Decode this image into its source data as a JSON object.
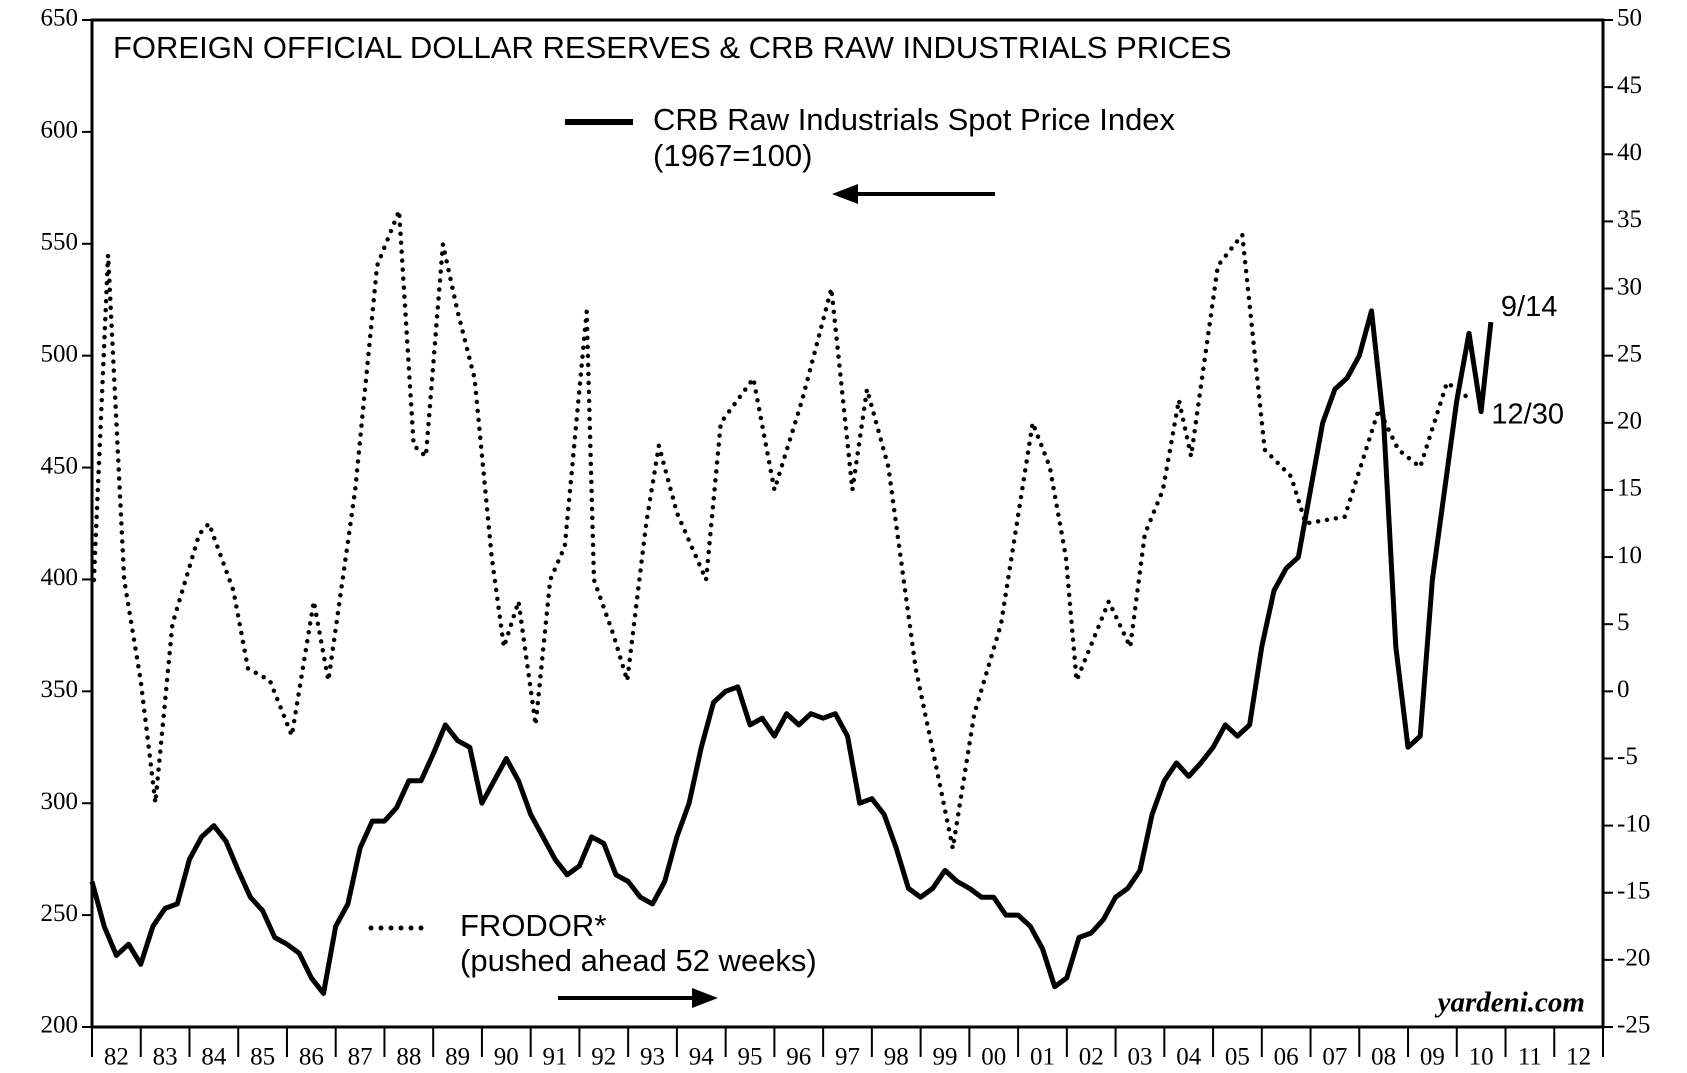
{
  "chart_data": {
    "type": "line",
    "title": "FOREIGN OFFICIAL DOLLAR RESERVES & CRB RAW INDUSTRIALS PRICES",
    "source": "yardeni.com",
    "xlim": [
      1982,
      2013
    ],
    "xticks": [
      {
        "value": 1982,
        "label": "82"
      },
      {
        "value": 1983,
        "label": "83"
      },
      {
        "value": 1984,
        "label": "84"
      },
      {
        "value": 1985,
        "label": "85"
      },
      {
        "value": 1986,
        "label": "86"
      },
      {
        "value": 1987,
        "label": "87"
      },
      {
        "value": 1988,
        "label": "88"
      },
      {
        "value": 1989,
        "label": "89"
      },
      {
        "value": 1990,
        "label": "90"
      },
      {
        "value": 1991,
        "label": "91"
      },
      {
        "value": 1992,
        "label": "92"
      },
      {
        "value": 1993,
        "label": "93"
      },
      {
        "value": 1994,
        "label": "94"
      },
      {
        "value": 1995,
        "label": "95"
      },
      {
        "value": 1996,
        "label": "96"
      },
      {
        "value": 1997,
        "label": "97"
      },
      {
        "value": 1998,
        "label": "98"
      },
      {
        "value": 1999,
        "label": "99"
      },
      {
        "value": 2000,
        "label": "00"
      },
      {
        "value": 2001,
        "label": "01"
      },
      {
        "value": 2002,
        "label": "02"
      },
      {
        "value": 2003,
        "label": "03"
      },
      {
        "value": 2004,
        "label": "04"
      },
      {
        "value": 2005,
        "label": "05"
      },
      {
        "value": 2006,
        "label": "06"
      },
      {
        "value": 2007,
        "label": "07"
      },
      {
        "value": 2008,
        "label": "08"
      },
      {
        "value": 2009,
        "label": "09"
      },
      {
        "value": 2010,
        "label": "10"
      },
      {
        "value": 2011,
        "label": "11"
      },
      {
        "value": 2012,
        "label": "12"
      }
    ],
    "ylim": [
      200,
      650
    ],
    "yticks": [
      200,
      250,
      300,
      350,
      400,
      450,
      500,
      550,
      600,
      650
    ],
    "y2lim": [
      -25,
      50
    ],
    "y2ticks": [
      -25,
      -20,
      -15,
      -10,
      -5,
      0,
      5,
      10,
      15,
      20,
      25,
      30,
      35,
      40,
      45,
      50
    ],
    "series": [
      {
        "name": "CRB Raw Industrials Spot Price Index",
        "note": "(1967=100)",
        "end_label": "9/14",
        "color": "#000000",
        "style": "solid",
        "axis": "y",
        "x": [
          1982,
          1982.25,
          1982.5,
          1982.75,
          1983,
          1983.25,
          1983.5,
          1983.75,
          1984,
          1984.25,
          1984.5,
          1984.75,
          1985,
          1985.25,
          1985.5,
          1985.75,
          1986,
          1986.25,
          1986.5,
          1986.75,
          1987,
          1987.25,
          1987.5,
          1987.75,
          1988,
          1988.25,
          1988.5,
          1988.75,
          1989,
          1989.25,
          1989.5,
          1989.75,
          1990,
          1990.25,
          1990.5,
          1990.75,
          1991,
          1991.25,
          1991.5,
          1991.75,
          1992,
          1992.25,
          1992.5,
          1992.75,
          1993,
          1993.25,
          1993.5,
          1993.75,
          1994,
          1994.25,
          1994.5,
          1994.75,
          1995,
          1995.25,
          1995.5,
          1995.75,
          1996,
          1996.25,
          1996.5,
          1996.75,
          1997,
          1997.25,
          1997.5,
          1997.75,
          1998,
          1998.25,
          1998.5,
          1998.75,
          1999,
          1999.25,
          1999.5,
          1999.75,
          2000,
          2000.25,
          2000.5,
          2000.75,
          2001,
          2001.25,
          2001.5,
          2001.75,
          2002,
          2002.25,
          2002.5,
          2002.75,
          2003,
          2003.25,
          2003.5,
          2003.75,
          2004,
          2004.25,
          2004.5,
          2004.75,
          2005,
          2005.25,
          2005.5,
          2005.75,
          2006,
          2006.25,
          2006.5,
          2006.75,
          2007,
          2007.25,
          2007.5,
          2007.75,
          2008,
          2008.25,
          2008.5,
          2008.75,
          2009,
          2009.25,
          2009.5,
          2009.75,
          2010,
          2010.25,
          2010.5,
          2010.7
        ],
        "values": [
          265,
          245,
          232,
          237,
          228,
          245,
          253,
          255,
          275,
          285,
          290,
          283,
          270,
          258,
          252,
          240,
          237,
          233,
          222,
          215,
          245,
          255,
          280,
          292,
          292,
          298,
          310,
          310,
          322,
          335,
          328,
          325,
          300,
          310,
          320,
          310,
          295,
          285,
          275,
          268,
          272,
          285,
          282,
          268,
          265,
          258,
          255,
          265,
          285,
          300,
          325,
          345,
          350,
          352,
          335,
          338,
          330,
          340,
          335,
          340,
          338,
          340,
          330,
          300,
          302,
          295,
          280,
          262,
          258,
          262,
          270,
          265,
          262,
          258,
          258,
          250,
          250,
          245,
          235,
          218,
          222,
          240,
          242,
          248,
          258,
          262,
          270,
          295,
          310,
          318,
          312,
          318,
          325,
          335,
          330,
          335,
          370,
          395,
          405,
          410,
          440,
          470,
          485,
          490,
          500,
          520,
          470,
          370,
          325,
          330,
          400,
          440,
          480,
          510,
          475,
          515
        ]
      },
      {
        "name": "FRODOR*",
        "note": "(pushed ahead 52 weeks)",
        "end_label": "12/30",
        "color": "#000000",
        "style": "dotted",
        "axis": "y2",
        "x": [
          1982.04,
          1982.33,
          1982.66,
          1983,
          1983.3,
          1983.65,
          1984.2,
          1984.4,
          1984.9,
          1985.2,
          1985.65,
          1986.1,
          1986.55,
          1986.85,
          1987.4,
          1987.85,
          1988.3,
          1988.6,
          1988.85,
          1989.2,
          1989.5,
          1989.85,
          1990.2,
          1990.45,
          1990.75,
          1991.1,
          1991.4,
          1991.7,
          1992.15,
          1992.3,
          1992.7,
          1992.98,
          1993.37,
          1993.63,
          1994,
          1994.6,
          1994.9,
          1995.57,
          1996,
          1996.57,
          1997.17,
          1997.6,
          1997.9,
          1998.34,
          1998.9,
          1999.33,
          1999.66,
          2000.1,
          2000.65,
          2001.3,
          2001.65,
          2001.98,
          2002.2,
          2002.86,
          2003.3,
          2003.6,
          2003.97,
          2004.3,
          2004.55,
          2004.8,
          2005.1,
          2005.6,
          2006.06,
          2006.6,
          2006.9,
          2007.7,
          2008.4,
          2008.8,
          2009.25,
          2009.8,
          2010.3
        ],
        "values": [
          8.3,
          32.5,
          8.3,
          0.8,
          -8.3,
          5,
          11.7,
          12.5,
          7.5,
          1.7,
          0.8,
          -3.3,
          6.7,
          0.8,
          15,
          31.7,
          35.8,
          18.3,
          17.5,
          33.3,
          28.3,
          23.3,
          10,
          3.3,
          6.7,
          -2.5,
          8.3,
          10.8,
          28.3,
          8.3,
          4.2,
          0.8,
          12.5,
          18.3,
          13.3,
          8.3,
          20,
          23.3,
          15,
          21.7,
          30,
          15,
          22.5,
          16.7,
          1.7,
          -5.8,
          -11.7,
          -1.7,
          5,
          20,
          16.7,
          10,
          0.8,
          6.7,
          3.3,
          11.7,
          15,
          21.7,
          17.5,
          24,
          31.7,
          34,
          18,
          16,
          12.5,
          13,
          21,
          18,
          16.7,
          23,
          21.7
        ]
      }
    ]
  }
}
